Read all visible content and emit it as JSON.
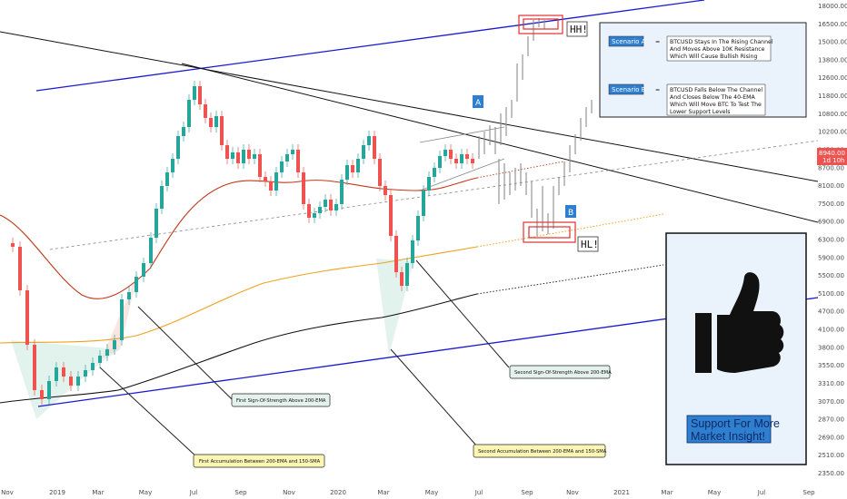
{
  "chart_data": {
    "type": "candlestick",
    "title": "",
    "price_axis": {
      "ticks": [
        "18000.00",
        "16500.00",
        "15000.00",
        "13800.00",
        "12600.00",
        "11800.00",
        "10800.00",
        "10200.00",
        "9450.00",
        "8700.00",
        "8100.00",
        "7500.00",
        "6900.00",
        "6300.00",
        "5900.00",
        "5500.00",
        "5100.00",
        "4700.00",
        "4100.00",
        "3800.00",
        "3550.00",
        "3310.00",
        "3070.00",
        "2870.00",
        "2690.00",
        "2510.00",
        "2350.00"
      ],
      "last_price": "8940.00",
      "countdown": "1d 10h"
    },
    "time_axis": {
      "ticks": [
        "Nov",
        "2019",
        "Mar",
        "May",
        "Jul",
        "Sep",
        "Nov",
        "2020",
        "Mar",
        "May",
        "Jul",
        "Sep",
        "Nov",
        "2021",
        "Mar",
        "May",
        "Jul",
        "Sep"
      ]
    },
    "moving_averages": [
      {
        "name": "40-EMA",
        "color": "#c0391b"
      },
      {
        "name": "150-SMA",
        "color": "#f0a020"
      },
      {
        "name": "200-EMA",
        "color": "#111111"
      }
    ],
    "labels": {
      "hh": "HH!",
      "hl": "HL!",
      "a": "A",
      "b": "B"
    },
    "annotations": {
      "first_strength": "First Sign-Of-Strength Above 200-EMA",
      "second_strength": "Second Sign-Of-Strength Above 200-EMA",
      "first_accum": "First Accumulation Between 200-EMA and 150-SMA",
      "second_accum": "Second Accumulation Between 200-EMA and 150-SMA"
    },
    "scenarios": [
      {
        "tag": "Scenario A",
        "eq": "=",
        "lines": [
          "BTCUSD Stays In The Rising Channel",
          "And Moves Above 10K Resistance",
          "Which Will Cause Bullish Rising"
        ]
      },
      {
        "tag": "Scenario B",
        "eq": "=",
        "lines": [
          "BTCUSD Falls Below The Channel",
          "And Closes Below The 40-EMA",
          "Which Will Move BTC To Test The",
          "Lower Support Levels"
        ]
      }
    ],
    "support_box": {
      "line1": "Support For More",
      "line2": "Market Insight!",
      "icon": "thumbs-up-icon"
    },
    "colors": {
      "up": "#26a69a",
      "down": "#ef5350",
      "channel": "#1a1ad0",
      "box_highlight": "#e03030",
      "panel_fill": "#eaf3fb",
      "scenario_tag": "#2f7fd0"
    }
  }
}
